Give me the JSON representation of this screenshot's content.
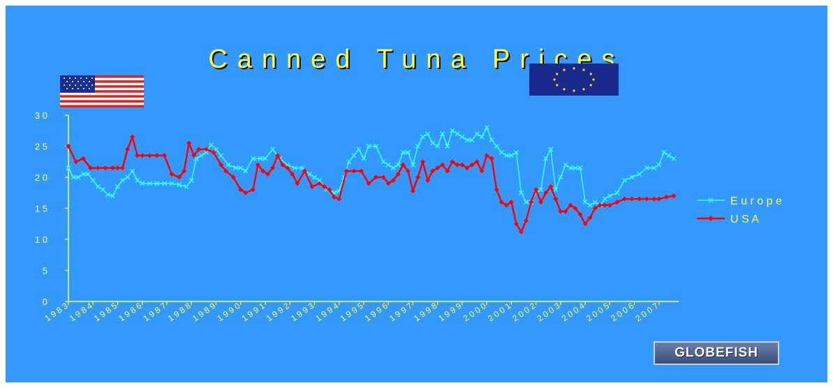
{
  "chart_data": {
    "type": "line",
    "title": "Canned Tuna Prices",
    "xlabel": "",
    "ylabel": "",
    "ylim": [
      0,
      30
    ],
    "yticks": [
      0,
      5,
      10,
      15,
      20,
      25,
      30
    ],
    "xlim": [
      1983,
      2007.8
    ],
    "xticks": [
      1983,
      1984,
      1985,
      1986,
      1987,
      1988,
      1989,
      1990,
      1991,
      1992,
      1993,
      1994,
      1995,
      1996,
      1997,
      1998,
      1999,
      2000,
      2001,
      2002,
      2003,
      2004,
      2005,
      2006,
      2007
    ],
    "xtick_labels": [
      "1983",
      "1984",
      "1985",
      "1986",
      "1987",
      "1988",
      "1989",
      "1990",
      "1991",
      "1992",
      "1993",
      "1994",
      "1995",
      "1996",
      "1997",
      "1998",
      "1999",
      "2000",
      "2001",
      "2002",
      "2003",
      "2004",
      "2005",
      "2006",
      "2007"
    ],
    "legend_position": "right",
    "colors": {
      "Europe": "#33ffff",
      "USA": "#ff0000",
      "axis": "#ffff33",
      "background": "#3399ff"
    },
    "series": [
      {
        "name": "Europe",
        "marker": "x",
        "x": [
          1983.0,
          1983.2,
          1983.4,
          1983.6,
          1983.8,
          1984.0,
          1984.2,
          1984.4,
          1984.6,
          1984.8,
          1985.0,
          1985.2,
          1985.4,
          1985.6,
          1985.8,
          1986.0,
          1986.3,
          1986.6,
          1986.9,
          1987.2,
          1987.5,
          1987.8,
          1988.0,
          1988.2,
          1988.4,
          1988.6,
          1988.8,
          1989.0,
          1989.2,
          1989.5,
          1989.8,
          1990.0,
          1990.2,
          1990.5,
          1990.8,
          1991.0,
          1991.3,
          1991.6,
          1991.9,
          1992.2,
          1992.5,
          1992.8,
          1993.0,
          1993.2,
          1993.5,
          1993.8,
          1994.0,
          1994.2,
          1994.4,
          1994.6,
          1994.8,
          1995.0,
          1995.2,
          1995.5,
          1995.8,
          1996.0,
          1996.2,
          1996.4,
          1996.6,
          1996.8,
          1997.0,
          1997.2,
          1997.4,
          1997.6,
          1997.8,
          1998.0,
          1998.2,
          1998.4,
          1998.6,
          1998.8,
          1999.0,
          1999.2,
          1999.4,
          1999.6,
          1999.8,
          2000.0,
          2000.2,
          2000.4,
          2000.6,
          2000.8,
          2001.0,
          2001.2,
          2001.4,
          2001.6,
          2001.8,
          2002.0,
          2002.2,
          2002.4,
          2002.6,
          2002.8,
          2003.0,
          2003.2,
          2003.4,
          2003.6,
          2003.8,
          2004.0,
          2004.2,
          2004.4,
          2004.6,
          2004.8,
          2005.0,
          2005.3,
          2005.6,
          2005.9,
          2006.2,
          2006.5,
          2006.8,
          2007.0,
          2007.2,
          2007.4,
          2007.6
        ],
        "values": [
          21.5,
          20.0,
          20.0,
          20.5,
          20.5,
          19.5,
          18.5,
          18.0,
          17.2,
          17.0,
          18.5,
          19.5,
          20.0,
          21.0,
          19.5,
          19.0,
          19.0,
          19.0,
          19.0,
          19.0,
          18.8,
          18.5,
          19.5,
          23.0,
          23.5,
          24.0,
          25.2,
          24.5,
          23.5,
          22.0,
          21.5,
          21.5,
          21.0,
          23.0,
          23.0,
          23.0,
          24.5,
          23.0,
          22.0,
          21.5,
          21.5,
          20.5,
          20.0,
          19.5,
          18.0,
          17.5,
          17.8,
          20.0,
          22.5,
          23.5,
          24.5,
          23.0,
          25.0,
          25.0,
          22.5,
          22.0,
          21.5,
          22.0,
          24.0,
          24.0,
          22.0,
          25.0,
          26.5,
          27.0,
          25.5,
          25.0,
          27.0,
          25.0,
          27.5,
          27.0,
          26.5,
          26.0,
          26.0,
          27.0,
          26.5,
          28.0,
          26.0,
          25.0,
          24.0,
          23.5,
          23.5,
          24.0,
          17.5,
          16.0,
          16.0,
          17.5,
          18.0,
          23.0,
          24.5,
          18.0,
          20.0,
          22.0,
          21.5,
          21.5,
          21.5,
          16.0,
          15.5,
          16.0,
          15.5,
          16.5,
          17.0,
          17.5,
          19.5,
          20.0,
          20.5,
          21.5,
          21.5,
          22.0,
          24.0,
          23.5,
          23.0
        ]
      },
      {
        "name": "USA",
        "marker": "diamond",
        "x": [
          1983.0,
          1983.3,
          1983.6,
          1983.9,
          1984.2,
          1984.5,
          1984.8,
          1985.0,
          1985.2,
          1985.4,
          1985.6,
          1985.8,
          1986.0,
          1986.3,
          1986.6,
          1986.9,
          1987.2,
          1987.5,
          1987.7,
          1987.9,
          1988.1,
          1988.3,
          1988.6,
          1988.9,
          1989.2,
          1989.4,
          1989.7,
          1990.0,
          1990.2,
          1990.5,
          1990.7,
          1990.9,
          1991.1,
          1991.3,
          1991.5,
          1991.7,
          1991.9,
          1992.1,
          1992.3,
          1992.6,
          1992.9,
          1993.2,
          1993.4,
          1993.6,
          1993.8,
          1994.0,
          1994.3,
          1994.6,
          1994.9,
          1995.2,
          1995.5,
          1995.8,
          1996.0,
          1996.2,
          1996.4,
          1996.6,
          1996.8,
          1997.0,
          1997.2,
          1997.4,
          1997.6,
          1997.8,
          1998.0,
          1998.2,
          1998.4,
          1998.6,
          1998.8,
          1999.0,
          1999.2,
          1999.4,
          1999.6,
          1999.8,
          2000.0,
          2000.2,
          2000.4,
          2000.6,
          2000.8,
          2001.0,
          2001.2,
          2001.4,
          2001.6,
          2001.8,
          2002.0,
          2002.2,
          2002.4,
          2002.6,
          2002.8,
          2003.0,
          2003.2,
          2003.4,
          2003.6,
          2003.8,
          2004.0,
          2004.2,
          2004.4,
          2004.6,
          2004.8,
          2005.0,
          2005.3,
          2005.6,
          2005.9,
          2006.2,
          2006.5,
          2006.8,
          2007.0,
          2007.3,
          2007.6
        ],
        "values": [
          25.0,
          22.5,
          23.0,
          21.5,
          21.5,
          21.5,
          21.5,
          21.5,
          21.5,
          24.5,
          26.5,
          23.5,
          23.5,
          23.5,
          23.5,
          23.5,
          20.5,
          20.0,
          21.0,
          25.5,
          23.5,
          24.5,
          24.5,
          24.0,
          22.0,
          21.0,
          20.0,
          18.0,
          17.5,
          18.0,
          22.0,
          21.0,
          20.5,
          21.5,
          23.5,
          22.0,
          21.5,
          20.5,
          19.0,
          21.0,
          18.5,
          19.0,
          18.5,
          18.0,
          16.8,
          16.5,
          21.0,
          21.0,
          21.0,
          19.0,
          20.0,
          20.0,
          19.0,
          19.5,
          20.5,
          22.0,
          21.0,
          17.8,
          20.0,
          22.5,
          19.5,
          21.0,
          21.5,
          22.0,
          21.0,
          22.5,
          22.0,
          22.0,
          21.5,
          22.0,
          22.5,
          21.0,
          23.5,
          23.0,
          18.0,
          16.0,
          15.5,
          16.0,
          12.5,
          11.2,
          13.0,
          16.0,
          18.0,
          16.0,
          17.5,
          18.5,
          16.5,
          14.5,
          14.5,
          15.5,
          15.0,
          14.0,
          12.5,
          13.5,
          15.0,
          15.5,
          15.5,
          15.5,
          16.0,
          16.5,
          16.5,
          16.5,
          16.5,
          16.5,
          16.5,
          16.8,
          17.0
        ]
      }
    ]
  },
  "logo_text": "GLOBEFISH"
}
